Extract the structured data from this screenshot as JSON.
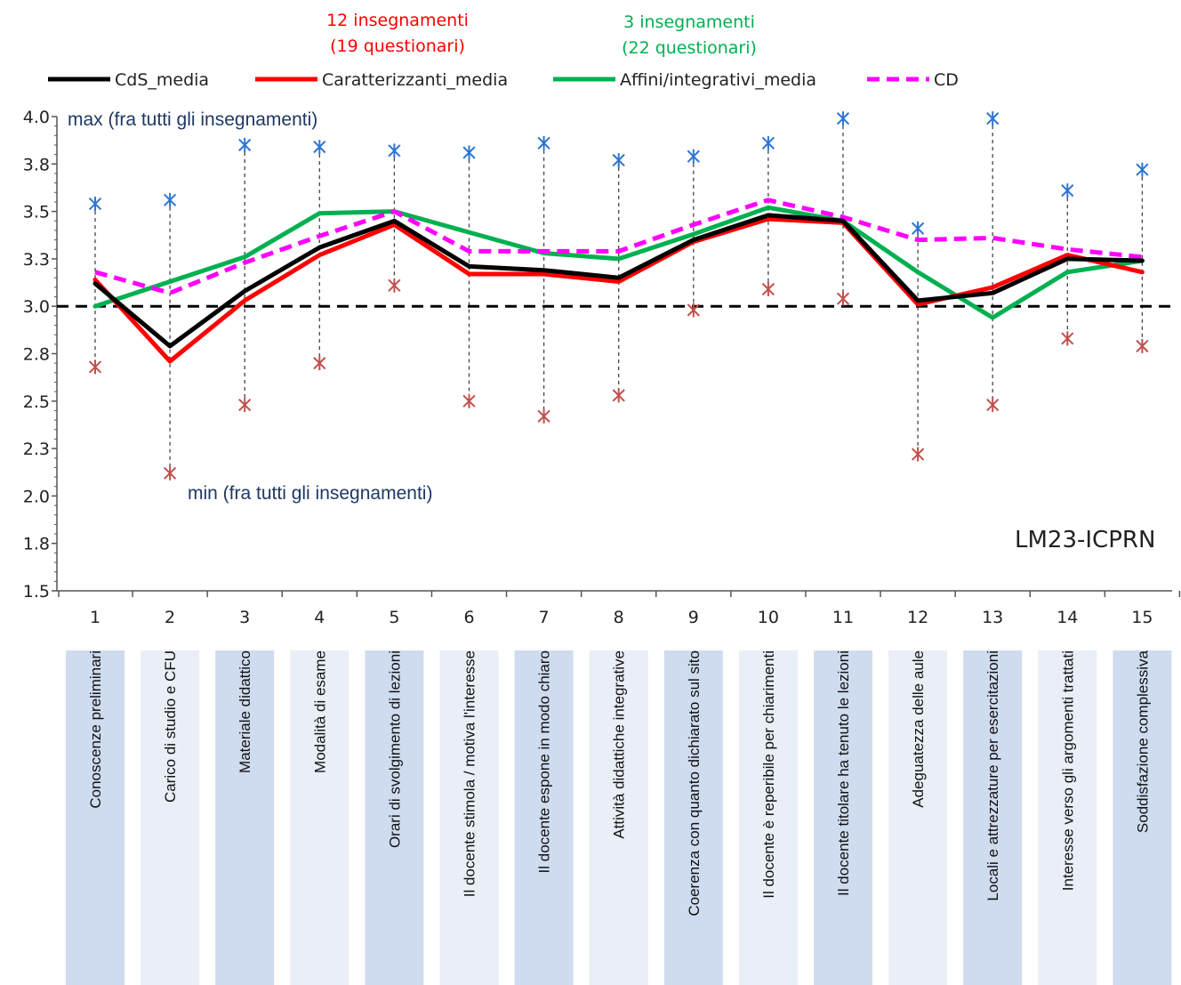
{
  "chart_data": {
    "type": "line",
    "x": [
      1,
      2,
      3,
      4,
      5,
      6,
      7,
      8,
      9,
      10,
      11,
      12,
      13,
      14,
      15
    ],
    "categories": [
      "Conoscenze preliminari",
      "Carico di studio e CFU",
      "Materiale didattico",
      "Modalità di esame",
      "Orari di svolgimento di lezioni",
      "Il docente stimola / motiva l'interesse",
      "Il docente espone in modo chiaro",
      "Attività didattiche integrative",
      "Coerenza con quanto dichiarato sul sito",
      "Il docente è reperibile per chiarimenti",
      "Il docente titolare ha tenuto le lezioni",
      "Adeguatezza delle aule",
      "Locali e attrezzature per esercitazioni",
      "Interesse verso gli argomenti trattati",
      "Soddisfazione complessiva"
    ],
    "ylim": [
      1.5,
      4.0
    ],
    "yticks": [
      "1.5",
      "1.8",
      "2.0",
      "2.3",
      "2.5",
      "2.8",
      "3.0",
      "3.3",
      "3.5",
      "3.8",
      "4.0"
    ],
    "ytick_values": [
      1.5,
      1.75,
      2.0,
      2.25,
      2.5,
      2.75,
      3.0,
      3.25,
      3.5,
      3.75,
      4.0
    ],
    "reference_line": 3.0,
    "series": [
      {
        "name": "CdS_media",
        "color": "#000000",
        "style": "solid",
        "values": [
          3.12,
          2.79,
          3.08,
          3.31,
          3.45,
          3.21,
          3.19,
          3.15,
          3.35,
          3.48,
          3.45,
          3.03,
          3.07,
          3.25,
          3.24
        ]
      },
      {
        "name": "Caratterizzanti_media",
        "color": "#ff0000",
        "style": "solid",
        "values": [
          3.14,
          2.71,
          3.03,
          3.27,
          3.43,
          3.17,
          3.17,
          3.13,
          3.34,
          3.46,
          3.44,
          3.01,
          3.1,
          3.27,
          3.18
        ]
      },
      {
        "name": "Affini/integrativi_media",
        "color": "#00b050",
        "style": "solid",
        "values": [
          3.0,
          3.13,
          3.26,
          3.49,
          3.5,
          3.39,
          3.28,
          3.25,
          3.38,
          3.52,
          3.45,
          3.18,
          2.94,
          3.18,
          3.24
        ]
      },
      {
        "name": "CD",
        "color": "#ff00ff",
        "style": "dashed",
        "values": [
          3.18,
          3.07,
          3.23,
          3.37,
          3.5,
          3.29,
          3.29,
          3.29,
          3.43,
          3.56,
          3.47,
          3.35,
          3.36,
          3.3,
          3.26
        ]
      }
    ],
    "max_values": [
      3.54,
      3.56,
      3.85,
      3.84,
      3.82,
      3.81,
      3.86,
      3.77,
      3.79,
      3.86,
      3.99,
      3.41,
      3.99,
      3.61,
      3.72
    ],
    "min_values": [
      2.68,
      2.12,
      2.48,
      2.7,
      3.11,
      2.5,
      2.42,
      2.53,
      2.98,
      3.09,
      3.04,
      2.22,
      2.48,
      2.83,
      2.79
    ],
    "max_color": "#2e75d1",
    "min_color": "#c0504d",
    "annotations": {
      "max_label": "max (fra tutti gli insegnamenti)",
      "min_label": "min (fra tutti gli insegnamenti)",
      "code": "LM23-ICPRN"
    },
    "header_red": {
      "line1": "12 insegnamenti",
      "line2": "(19 questionari)",
      "color": "#ff0000"
    },
    "header_green": {
      "line1": "3 insegnamenti",
      "line2": "(22 questionari)",
      "color": "#00b050"
    },
    "legend_placement": "top",
    "grid": false
  }
}
